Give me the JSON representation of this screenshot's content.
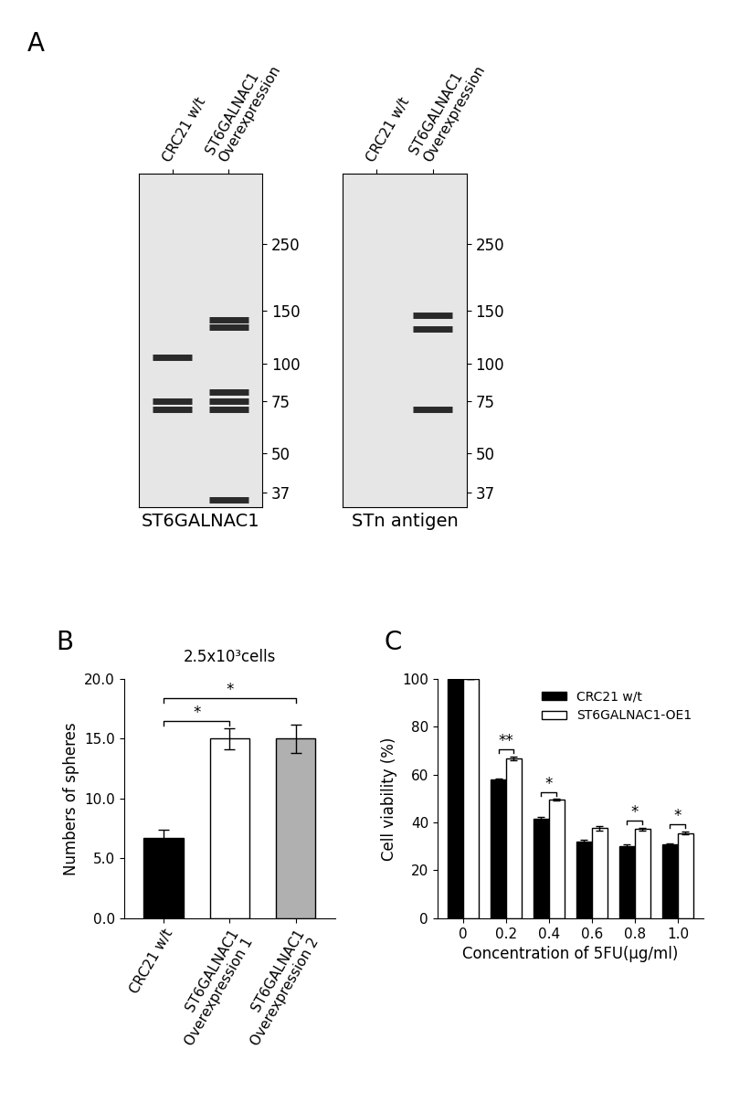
{
  "chart_data": [
    {
      "type": "blot",
      "panel": "A",
      "xlabel": "ST6GALNAC1",
      "categories": [
        "CRC21 w/t",
        "ST6GALNAC1\nOverexpression"
      ],
      "bands": [
        [
          105,
          75,
          70
        ],
        [
          140,
          132,
          80,
          75,
          70,
          35
        ]
      ],
      "log": "y",
      "ylim": [
        33,
        430
      ],
      "yticks": [
        37,
        50,
        75,
        100,
        150,
        250
      ]
    },
    {
      "type": "blot",
      "xlabel": "STn antigen",
      "categories": [
        "CRC21 w/t",
        "ST6GALNAC1\nOverexpression"
      ],
      "bands": [
        [],
        [
          145,
          130,
          70
        ]
      ],
      "log": "y",
      "ylim": [
        33,
        430
      ],
      "yticks": [
        37,
        50,
        75,
        100,
        150,
        250
      ]
    },
    {
      "type": "bar",
      "panel": "B",
      "title": "2.5x10³cells",
      "ylabel": "Numbers of spheres",
      "categories": [
        "CRC21 w/t",
        "ST6GALNAC1\nOverexpression 1",
        "ST6GALNAC1\nOverexpression 2"
      ],
      "values": [
        6.7,
        15.0,
        15.0
      ],
      "errors": [
        0.7,
        0.9,
        1.2
      ],
      "colors": [
        "#000000",
        "#ffffff",
        "#b0b0b0"
      ],
      "significance": [
        {
          "from": 0,
          "to": 1,
          "label": "*"
        },
        {
          "from": 0,
          "to": 2,
          "label": "*"
        }
      ],
      "ylim": [
        0,
        20
      ],
      "yticks": [
        {
          "value": 0,
          "label": "0.0"
        },
        {
          "value": 5,
          "label": "5.0"
        },
        {
          "value": 10,
          "label": "10.0"
        },
        {
          "value": 15,
          "label": "15.0"
        },
        {
          "value": 20,
          "label": "20.0"
        }
      ]
    },
    {
      "type": "bar",
      "panel": "C",
      "xlabel": "Concentration of 5FU(μg/ml)",
      "ylabel": "Cell viability (%)",
      "categories": [
        "0",
        "0.2",
        "0.4",
        "0.6",
        "0.8",
        "1.0"
      ],
      "series": [
        {
          "name": "CRC21 w/t",
          "color": "#000000",
          "values": [
            100,
            57.8,
            41.5,
            32.0,
            30.3,
            31.0
          ],
          "errors": [
            0,
            0.5,
            0.8,
            0.7,
            0.4,
            0.4
          ]
        },
        {
          "name": "ST6GALNAC1-OE1",
          "color": "#ffffff",
          "values": [
            100,
            66.8,
            49.5,
            37.7,
            37.2,
            35.5
          ],
          "errors": [
            0,
            0.8,
            0.3,
            1.0,
            0.7,
            0.6
          ]
        }
      ],
      "significance": [
        null,
        "**",
        "*",
        null,
        "*",
        "*"
      ],
      "legend": "upper right",
      "ylim": [
        0,
        100
      ],
      "yticks": [
        0,
        20,
        40,
        60,
        80,
        100
      ]
    }
  ]
}
